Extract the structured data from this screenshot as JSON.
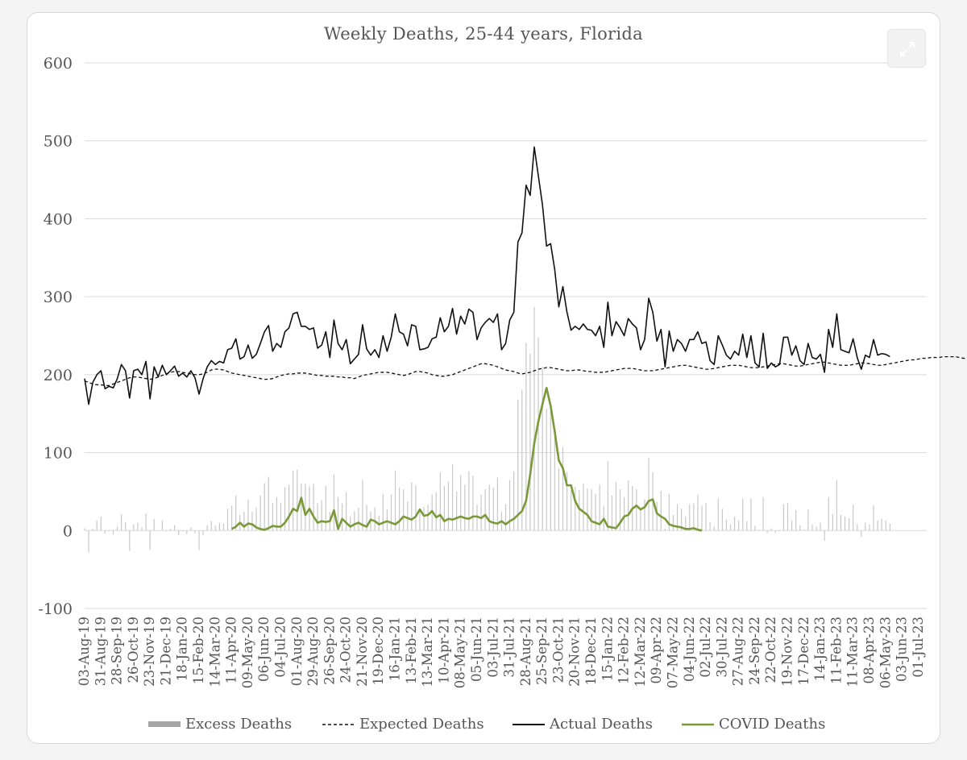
{
  "chart_data": {
    "type": "line",
    "title": "Weekly Deaths, 25-44 years, Florida",
    "xlabel": "",
    "ylabel": "",
    "ylim": [
      -100,
      600
    ],
    "yticks": [
      600,
      500,
      400,
      300,
      200,
      100,
      0,
      -100
    ],
    "grid": true,
    "legend_position": "bottom",
    "x_tick_labels": [
      "03-Aug-19",
      "31-Aug-19",
      "28-Sep-19",
      "26-Oct-19",
      "23-Nov-19",
      "21-Dec-19",
      "18-Jan-20",
      "15-Feb-20",
      "14-Mar-20",
      "11-Apr-20",
      "09-May-20",
      "06-Jun-20",
      "04-Jul-20",
      "01-Aug-20",
      "29-Aug-20",
      "26-Sep-20",
      "24-Oct-20",
      "21-Nov-20",
      "19-Dec-20",
      "16-Jan-21",
      "13-Feb-21",
      "13-Mar-21",
      "10-Apr-21",
      "08-May-21",
      "05-Jun-21",
      "03-Jul-21",
      "31-Jul-21",
      "28-Aug-21",
      "25-Sep-21",
      "23-Oct-21",
      "20-Nov-21",
      "18-Dec-21",
      "15-Jan-22",
      "12-Feb-22",
      "12-Mar-22",
      "09-Apr-22",
      "07-May-22",
      "04-Jun-22",
      "02-Jul-22",
      "30-Jul-22",
      "27-Aug-22",
      "24-Sep-22",
      "22-Oct-22",
      "19-Nov-22",
      "17-Dec-22",
      "14-Jan-23",
      "11-Feb-23",
      "11-Mar-23",
      "08-Apr-23",
      "06-May-23",
      "03-Jun-23",
      "01-Jul-23"
    ],
    "series": [
      {
        "name": "Actual Deaths",
        "color": "#111111",
        "style": "solid",
        "values": [
          195,
          162,
          190,
          200,
          205,
          182,
          185,
          183,
          195,
          213,
          205,
          170,
          205,
          207,
          200,
          217,
          169,
          210,
          197,
          212,
          200,
          205,
          211,
          198,
          202,
          197,
          205,
          196,
          175,
          195,
          210,
          218,
          213,
          217,
          215,
          232,
          234,
          246,
          220,
          223,
          238,
          221,
          226,
          240,
          255,
          263,
          230,
          240,
          235,
          255,
          260,
          278,
          280,
          262,
          262,
          258,
          260,
          234,
          238,
          255,
          222,
          270,
          240,
          232,
          245,
          214,
          220,
          226,
          264,
          233,
          225,
          232,
          222,
          250,
          230,
          248,
          278,
          255,
          252,
          237,
          264,
          262,
          232,
          233,
          235,
          246,
          248,
          273,
          255,
          262,
          285,
          252,
          275,
          265,
          284,
          280,
          245,
          260,
          267,
          272,
          267,
          278,
          232,
          240,
          270,
          280,
          370,
          382,
          443,
          430,
          492,
          455,
          418,
          365,
          368,
          335,
          287,
          313,
          280,
          257,
          262,
          258,
          265,
          258,
          257,
          250,
          262,
          235,
          293,
          250,
          268,
          260,
          250,
          272,
          265,
          260,
          232,
          245,
          298,
          280,
          243,
          258,
          210,
          256,
          230,
          245,
          240,
          230,
          245,
          245,
          255,
          240,
          242,
          218,
          213,
          250,
          238,
          225,
          220,
          230,
          225,
          252,
          222,
          250,
          215,
          210,
          253,
          208,
          215,
          210,
          213,
          248,
          248,
          225,
          237,
          218,
          213,
          240,
          222,
          220,
          226,
          203,
          258,
          235,
          278,
          232,
          230,
          228,
          246,
          222,
          207,
          225,
          222,
          245,
          225,
          227,
          226,
          223
        ],
        "start_index": 0
      },
      {
        "name": "Expected Deaths",
        "color": "#111111",
        "style": "dashed",
        "values": [
          192,
          190,
          188,
          187,
          187,
          186,
          186,
          188,
          190,
          192,
          194,
          196,
          197,
          197,
          196,
          195,
          194,
          195,
          197,
          199,
          201,
          203,
          204,
          204,
          203,
          202,
          201,
          200,
          200,
          201,
          203,
          206,
          207,
          207,
          206,
          204,
          202,
          201,
          200,
          199,
          198,
          197,
          196,
          195,
          194,
          194,
          195,
          197,
          199,
          200,
          201,
          201,
          202,
          202,
          202,
          201,
          200,
          199,
          199,
          198,
          198,
          198,
          197,
          197,
          196,
          196,
          195,
          197,
          199,
          200,
          201,
          202,
          203,
          203,
          203,
          202,
          201,
          200,
          199,
          200,
          202,
          204,
          204,
          203,
          202,
          200,
          199,
          198,
          198,
          199,
          200,
          202,
          204,
          206,
          208,
          210,
          212,
          214,
          214,
          213,
          212,
          210,
          208,
          206,
          205,
          204,
          202,
          201,
          202,
          203,
          205,
          207,
          208,
          209,
          209,
          208,
          207,
          206,
          205,
          205,
          206,
          206,
          205,
          204,
          204,
          203,
          203,
          203,
          204,
          205,
          206,
          207,
          208,
          208,
          208,
          207,
          206,
          205,
          205,
          205,
          206,
          207,
          208,
          209,
          210,
          211,
          212,
          212,
          211,
          210,
          209,
          208,
          207,
          207,
          208,
          209,
          210,
          211,
          212,
          212,
          212,
          211,
          210,
          209,
          209,
          209,
          210,
          211,
          212,
          213,
          214,
          214,
          213,
          212,
          211,
          211,
          212,
          213,
          214,
          215,
          216,
          216,
          215,
          214,
          213,
          212,
          212,
          212,
          213,
          214,
          215,
          215,
          214,
          213,
          212,
          212,
          213,
          214,
          215,
          216,
          217,
          218,
          219,
          219,
          220,
          221,
          221,
          222,
          222,
          222,
          223,
          223,
          223,
          223,
          222,
          221,
          221,
          220,
          219,
          218,
          217,
          216,
          215,
          214,
          213,
          212,
          213,
          215,
          217,
          219,
          220,
          221,
          222,
          222,
          223
        ],
        "start_index": 0
      },
      {
        "name": "COVID Deaths",
        "color": "#7a9a3a",
        "style": "solid",
        "values": [
          2,
          5,
          10,
          5,
          9,
          8,
          4,
          2,
          1,
          3,
          6,
          5,
          5,
          10,
          18,
          28,
          25,
          42,
          20,
          28,
          18,
          10,
          12,
          11,
          12,
          26,
          2,
          15,
          10,
          5,
          8,
          10,
          7,
          5,
          14,
          12,
          8,
          10,
          12,
          10,
          8,
          12,
          18,
          16,
          14,
          18,
          27,
          19,
          20,
          25,
          17,
          20,
          12,
          15,
          14,
          16,
          18,
          16,
          15,
          18,
          18,
          16,
          20,
          12,
          10,
          9,
          12,
          8,
          12,
          15,
          20,
          25,
          38,
          72,
          112,
          140,
          162,
          183,
          160,
          127,
          90,
          80,
          58,
          58,
          38,
          28,
          24,
          20,
          12,
          10,
          8,
          15,
          5,
          4,
          3,
          10,
          18,
          20,
          28,
          32,
          27,
          30,
          38,
          40,
          22,
          18,
          15,
          8,
          6,
          5,
          4,
          2,
          2,
          3,
          1,
          0
        ],
        "start_index": 36
      },
      {
        "name": "Excess Deaths",
        "color": "#b8b8b8",
        "style": "bar",
        "values": "derived: Actual Deaths - Expected Deaths per week"
      }
    ],
    "legend_entries": [
      "Excess Deaths",
      "Expected Deaths",
      "Actual Deaths",
      "COVID Deaths"
    ]
  }
}
